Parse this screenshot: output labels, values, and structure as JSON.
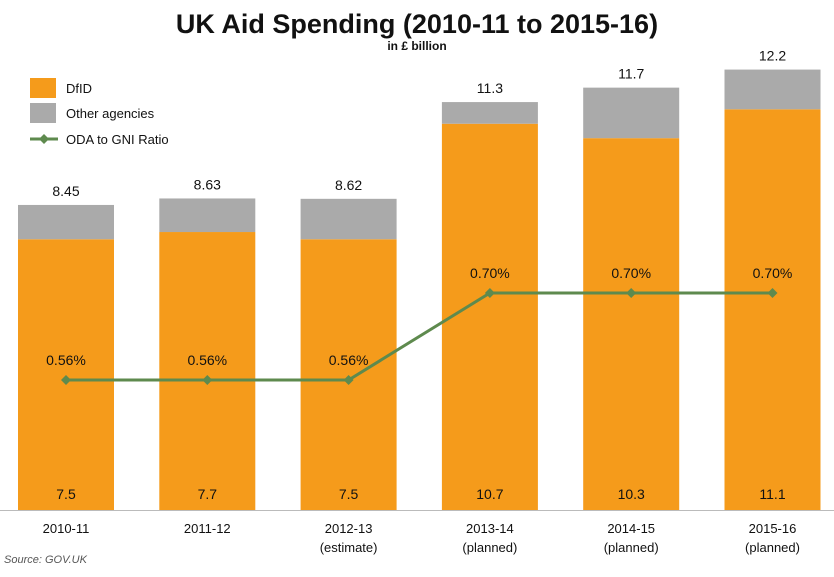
{
  "chart_data": {
    "type": "bar",
    "title": "UK Aid Spending (2010-11 to 2015-16)",
    "subtitle": "in £ billion",
    "categories": [
      [
        "2010-11"
      ],
      [
        "2011-12"
      ],
      [
        "2012-13",
        "(estimate)"
      ],
      [
        "2013-14",
        "(planned)"
      ],
      [
        "2014-15",
        "(planned)"
      ],
      [
        "2015-16",
        "(planned)"
      ]
    ],
    "stacked": true,
    "series": [
      {
        "name": "DfID",
        "values": [
          7.5,
          7.7,
          7.5,
          10.7,
          10.3,
          11.1
        ],
        "value_labels": [
          "7.5",
          "7.7",
          "7.5",
          "10.7",
          "10.3",
          "11.1"
        ]
      },
      {
        "name": "Other agencies",
        "values": [
          0.95,
          0.93,
          1.12,
          0.6,
          1.4,
          1.1
        ]
      }
    ],
    "totals": [
      8.45,
      8.63,
      8.62,
      11.3,
      11.7,
      12.2
    ],
    "total_labels": [
      "8.45",
      "8.63",
      "8.62",
      "11.3",
      "11.7",
      "12.2"
    ],
    "line_series": {
      "name": "ODA to GNI Ratio",
      "values": [
        0.56,
        0.56,
        0.56,
        0.7,
        0.7,
        0.7
      ],
      "labels": [
        "0.56%",
        "0.56%",
        "0.56%",
        "0.70%",
        "0.70%",
        "0.70%"
      ]
    },
    "legend": "top-left",
    "source": "Source: GOV.UK",
    "colors": {
      "dfid": "#F59B1B",
      "other": "#AAAAAA",
      "line": "#5E8A4E"
    }
  }
}
